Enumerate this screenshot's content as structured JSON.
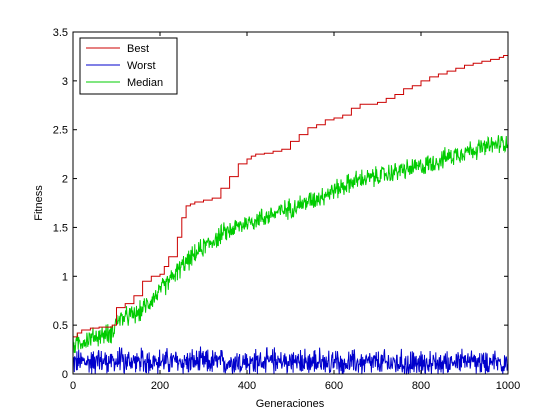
{
  "chart_data": {
    "type": "line",
    "title": "",
    "xlabel": "Generaciones",
    "ylabel": "Fitness",
    "xlim": [
      0,
      1000
    ],
    "ylim": [
      0,
      3.5
    ],
    "xticks": [
      0,
      200,
      400,
      600,
      800,
      1000
    ],
    "yticks": [
      0,
      0.5,
      1,
      1.5,
      2,
      2.5,
      3,
      3.5
    ],
    "xtick_labels": [
      "0",
      "200",
      "400",
      "600",
      "800",
      "1000"
    ],
    "ytick_labels": [
      "0",
      "0.5",
      "1",
      "1.5",
      "2",
      "2.5",
      "3",
      "3.5"
    ],
    "grid": false,
    "legend_position": "top-left",
    "series": [
      {
        "name": "Best",
        "color": "#cc0000",
        "style": "step",
        "x": [
          0,
          10,
          20,
          40,
          60,
          90,
          100,
          120,
          140,
          160,
          180,
          200,
          210,
          220,
          240,
          250,
          260,
          270,
          280,
          300,
          320,
          340,
          360,
          380,
          400,
          410,
          420,
          440,
          460,
          480,
          500,
          520,
          540,
          560,
          580,
          600,
          620,
          640,
          660,
          700,
          720,
          740,
          760,
          780,
          800,
          820,
          840,
          860,
          880,
          900,
          920,
          940,
          960,
          980,
          990,
          1000
        ],
        "y": [
          0.38,
          0.42,
          0.45,
          0.47,
          0.48,
          0.5,
          0.68,
          0.72,
          0.8,
          0.95,
          1.0,
          1.02,
          1.1,
          1.2,
          1.4,
          1.6,
          1.72,
          1.74,
          1.76,
          1.78,
          1.8,
          1.9,
          2.02,
          2.15,
          2.2,
          2.23,
          2.25,
          2.26,
          2.28,
          2.3,
          2.38,
          2.45,
          2.52,
          2.55,
          2.6,
          2.62,
          2.65,
          2.72,
          2.76,
          2.78,
          2.82,
          2.86,
          2.92,
          2.95,
          3.0,
          3.04,
          3.07,
          3.1,
          3.13,
          3.16,
          3.18,
          3.2,
          3.22,
          3.24,
          3.26,
          3.31
        ]
      },
      {
        "name": "Worst",
        "color": "#0000cc",
        "style": "noisy",
        "anchors_x": [
          0,
          100,
          200,
          300,
          400,
          500,
          600,
          700,
          800,
          900,
          1000
        ],
        "anchors_y": [
          0.12,
          0.13,
          0.13,
          0.12,
          0.12,
          0.12,
          0.12,
          0.11,
          0.11,
          0.12,
          0.12
        ],
        "noise": 0.12,
        "floor": 0,
        "max": 0.35
      },
      {
        "name": "Median",
        "color": "#00cc00",
        "style": "noisy",
        "anchors_x": [
          0,
          50,
          90,
          100,
          150,
          200,
          250,
          300,
          350,
          400,
          450,
          500,
          550,
          600,
          650,
          700,
          750,
          800,
          850,
          900,
          950,
          1000
        ],
        "anchors_y": [
          0.3,
          0.38,
          0.42,
          0.55,
          0.62,
          0.85,
          1.1,
          1.3,
          1.45,
          1.55,
          1.62,
          1.7,
          1.78,
          1.88,
          1.98,
          2.02,
          2.08,
          2.12,
          2.2,
          2.28,
          2.32,
          2.38
        ],
        "noise": 0.09,
        "max": 2.72
      }
    ]
  }
}
